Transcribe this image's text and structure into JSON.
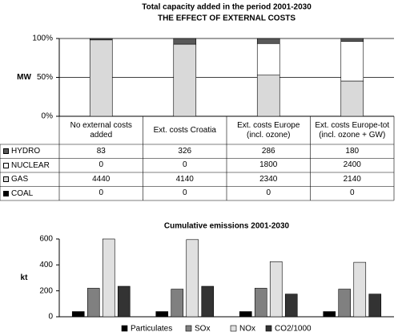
{
  "chart_data": [
    {
      "type": "stacked-percent-bar",
      "title": "Total capacity added in the period 2001-2030",
      "subtitle": "THE EFFECT OF EXTERNAL COSTS",
      "y_label": "MW",
      "categories": [
        "No external costs added",
        "Ext. costs Croatia",
        "Ext. costs Europe (incl. ozone)",
        "Ext. costs Europe-tot (incl. ozone + GW)"
      ],
      "series": [
        {
          "name": "HYDRO",
          "color": "#595959",
          "values": [
            83,
            326,
            286,
            180
          ]
        },
        {
          "name": "NUCLEAR",
          "color": "#ffffff",
          "values": [
            0,
            0,
            1800,
            2400
          ]
        },
        {
          "name": "GAS",
          "color": "#d9d9d9",
          "values": [
            4440,
            4140,
            2340,
            2140
          ]
        },
        {
          "name": "COAL",
          "color": "#000000",
          "values": [
            0,
            0,
            0,
            0
          ]
        }
      ],
      "ylim": [
        0,
        100
      ],
      "yticks": [
        {
          "value": 0,
          "label": "0%"
        },
        {
          "value": 50,
          "label": "50%"
        },
        {
          "value": 100,
          "label": "100%"
        }
      ],
      "grid": true
    },
    {
      "type": "bar",
      "title": "Cumulative emissions 2001-2030",
      "y_label": "kt",
      "categories": [
        null,
        null,
        null,
        null
      ],
      "series": [
        {
          "name": "Particulates",
          "color": "#000000",
          "values": [
            40,
            40,
            40,
            40
          ]
        },
        {
          "name": "SOx",
          "color": "#808080",
          "values": [
            220,
            213,
            220,
            213
          ]
        },
        {
          "name": "NOx",
          "color": "#e0e0e0",
          "values": [
            600,
            595,
            425,
            420
          ]
        },
        {
          "name": "CO2/1000",
          "color": "#333333",
          "values": [
            235,
            235,
            175,
            175
          ]
        }
      ],
      "ylim": [
        0,
        600
      ],
      "yticks": [
        0,
        200,
        400,
        600
      ],
      "grid": false
    }
  ]
}
